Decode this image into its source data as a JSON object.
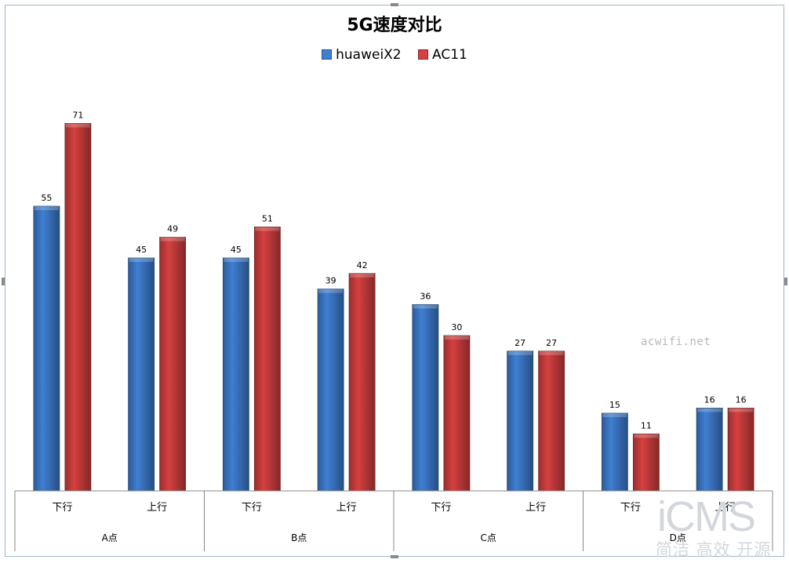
{
  "chart_data": {
    "type": "bar",
    "title": "5G速度对比",
    "legend_position": "top",
    "categories": [
      {
        "group": "A点",
        "label": "下行"
      },
      {
        "group": "A点",
        "label": "上行"
      },
      {
        "group": "B点",
        "label": "下行"
      },
      {
        "group": "B点",
        "label": "上行"
      },
      {
        "group": "C点",
        "label": "下行"
      },
      {
        "group": "C点",
        "label": "上行"
      },
      {
        "group": "D点",
        "label": "下行"
      },
      {
        "group": "D点",
        "label": "上行"
      }
    ],
    "groups": [
      "A点",
      "B点",
      "C点",
      "D点"
    ],
    "series": [
      {
        "name": "huaweiX2",
        "color": "#3f7fd3",
        "values": [
          55,
          45,
          45,
          39,
          36,
          27,
          15,
          16
        ]
      },
      {
        "name": "AC11",
        "color": "#d64040",
        "values": [
          71,
          49,
          51,
          42,
          30,
          27,
          11,
          16
        ]
      }
    ],
    "ylim": [
      0,
      80
    ],
    "grid": false,
    "data_labels": true
  },
  "watermarks": {
    "site": "acwifi.net",
    "logo": "iCMS",
    "tagline": "简洁 高效 开源"
  }
}
